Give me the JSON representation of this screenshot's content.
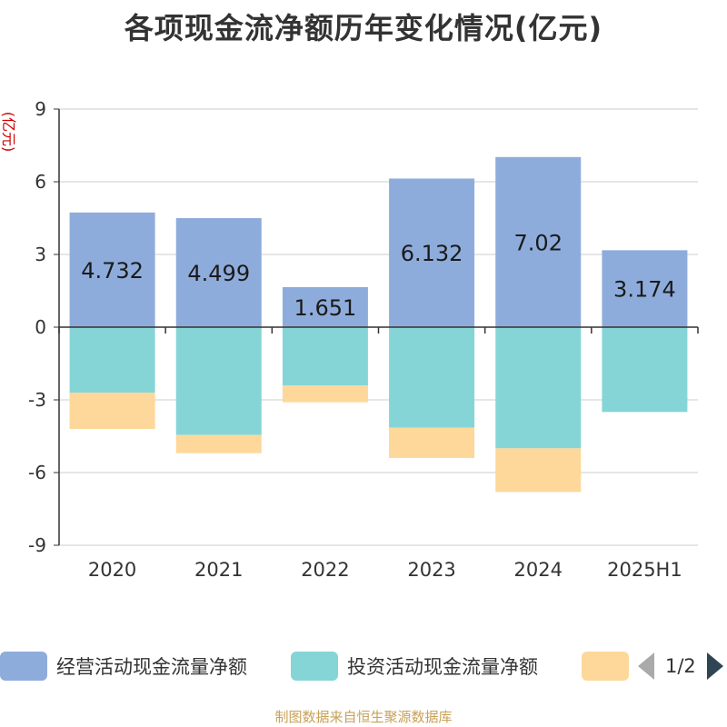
{
  "title": "各项现金流净额历年变化情况(亿元)",
  "unit_label": "(亿元)",
  "legend": {
    "page": "1/2"
  },
  "source": "制图数据来自恒生聚源数据库",
  "colors": {
    "operating": "#8eacdb",
    "investing": "#85d5d7",
    "financing": "#fdd89a",
    "axis": "#333333",
    "grid": "#cccccc",
    "unit": "#cc0000"
  },
  "chart_data": {
    "type": "bar",
    "stacked": true,
    "title": "各项现金流净额历年变化情况(亿元)",
    "ylabel": "(亿元)",
    "categories": [
      "2020",
      "2021",
      "2022",
      "2023",
      "2024",
      "2025H1"
    ],
    "ylim": [
      -9,
      9
    ],
    "yticks": [
      -9,
      -6,
      -3,
      0,
      3,
      6,
      9
    ],
    "grid": true,
    "legend_position": "bottom",
    "series": [
      {
        "name": "经营活动现金流量净额",
        "values": [
          4.732,
          4.499,
          1.651,
          6.132,
          7.02,
          3.174
        ],
        "labels": [
          "4.732",
          "4.499",
          "1.651",
          "6.132",
          "7.02",
          "3.174"
        ]
      },
      {
        "name": "投资活动现金流量净额",
        "values": [
          -2.7,
          -4.45,
          -2.4,
          -4.15,
          -5.0,
          -3.5
        ]
      },
      {
        "name": "",
        "values": [
          -1.5,
          -0.75,
          -0.7,
          -1.25,
          -1.8,
          0
        ]
      }
    ]
  }
}
